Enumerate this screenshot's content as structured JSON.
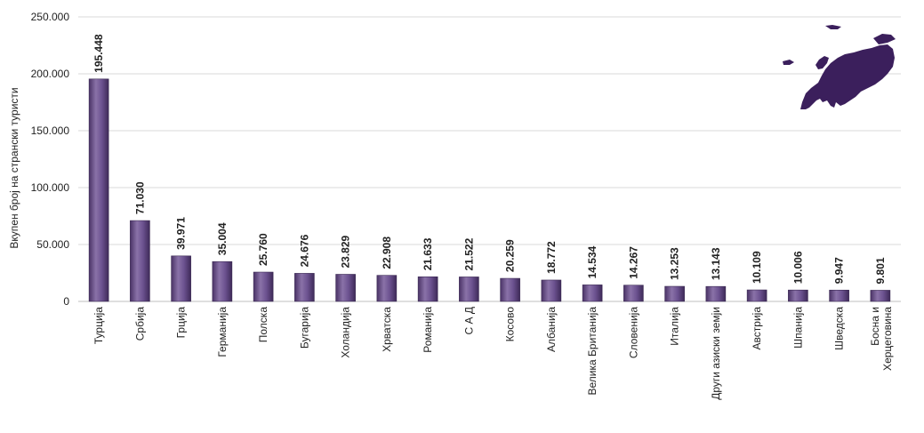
{
  "chart_data": {
    "type": "bar",
    "ylabel": "Вкупен број на странски туристи",
    "ylim": [
      0,
      250000
    ],
    "yticks": [
      0,
      50000,
      100000,
      150000,
      200000,
      250000
    ],
    "ytick_labels": [
      "0",
      "50.000",
      "100.000",
      "150.000",
      "200.000",
      "250.000"
    ],
    "grid": true,
    "categories": [
      "Турција",
      "Србија",
      "Грција",
      "Германија",
      "Полска",
      "Бугарија",
      "Холандија",
      "Хрватска",
      "Романија",
      "С А Д",
      "Косово",
      "Албанија",
      "Велика Британија",
      "Словенија",
      "Италија",
      "Други азиски земји",
      "Австрија",
      "Шпанија",
      "Шведска",
      "Босна и Херцеговина"
    ],
    "values": [
      195448,
      71030,
      39971,
      35004,
      25760,
      24676,
      23829,
      22908,
      21633,
      21522,
      20259,
      18772,
      14534,
      14267,
      13253,
      13143,
      10109,
      10006,
      9947,
      9801
    ],
    "value_labels": [
      "195.448",
      "71.030",
      "39.971",
      "35.004",
      "25.760",
      "24.676",
      "23.829",
      "22.908",
      "21.633",
      "21.522",
      "20.259",
      "18.772",
      "14.534",
      "14.267",
      "13.253",
      "13.143",
      "10.109",
      "10.006",
      "9.947",
      "9.801"
    ],
    "bar_color": "#5a4178",
    "bar_highlight": "#8a72a8",
    "inset_icon": "europe-map-icon",
    "inset_color": "#3b1f5c"
  }
}
